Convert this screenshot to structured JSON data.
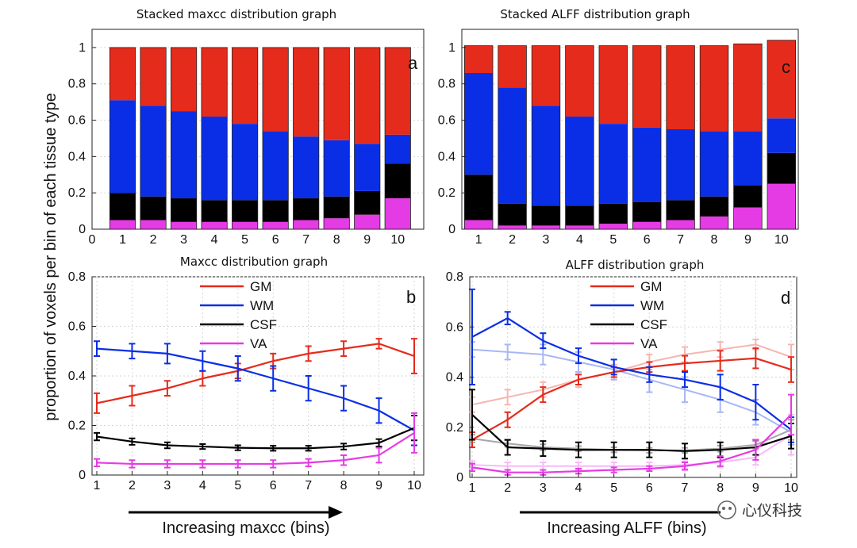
{
  "shared": {
    "ylabel": "proportion of voxels per bin of each tissue type",
    "watermark": "心仪科技"
  },
  "chart_data": [
    {
      "id": "a",
      "type": "bar",
      "stacked": true,
      "title": "Stacked maxcc distribution graph",
      "corner_label": "a",
      "x_ticks": [
        "0",
        "1",
        "2",
        "3",
        "4",
        "5",
        "6",
        "7",
        "8",
        "9",
        "10"
      ],
      "y_ticks": [
        "0",
        "0.2",
        "0.4",
        "0.6",
        "0.8",
        "1"
      ],
      "categories": [
        "1",
        "2",
        "3",
        "4",
        "5",
        "6",
        "7",
        "8",
        "9",
        "10"
      ],
      "ylim": [
        0,
        1.1
      ],
      "series": [
        {
          "key": "VA",
          "color": "#e53be5",
          "values": [
            0.05,
            0.05,
            0.04,
            0.04,
            0.04,
            0.04,
            0.05,
            0.06,
            0.08,
            0.17
          ]
        },
        {
          "key": "CSF",
          "color": "#000000",
          "values": [
            0.15,
            0.13,
            0.13,
            0.12,
            0.12,
            0.12,
            0.12,
            0.12,
            0.13,
            0.19
          ]
        },
        {
          "key": "WM",
          "color": "#0a2ee6",
          "values": [
            0.51,
            0.5,
            0.48,
            0.46,
            0.42,
            0.38,
            0.34,
            0.31,
            0.26,
            0.16
          ]
        },
        {
          "key": "GM",
          "color": "#e52b1c",
          "values": [
            0.29,
            0.32,
            0.35,
            0.38,
            0.42,
            0.46,
            0.49,
            0.51,
            0.53,
            0.48
          ]
        }
      ]
    },
    {
      "id": "c",
      "type": "bar",
      "stacked": true,
      "title": "Stacked ALFF distribution graph",
      "corner_label": "c",
      "x_ticks": [
        "1",
        "2",
        "3",
        "4",
        "5",
        "6",
        "7",
        "8",
        "9",
        "10"
      ],
      "y_ticks": [
        "0",
        "0.2",
        "0.4",
        "0.6",
        "0.8",
        "1"
      ],
      "categories": [
        "1",
        "2",
        "3",
        "4",
        "5",
        "6",
        "7",
        "8",
        "9",
        "10"
      ],
      "ylim": [
        0,
        1.1
      ],
      "series": [
        {
          "key": "VA",
          "color": "#e53be5",
          "values": [
            0.05,
            0.02,
            0.02,
            0.02,
            0.03,
            0.04,
            0.05,
            0.07,
            0.12,
            0.25
          ]
        },
        {
          "key": "CSF",
          "color": "#000000",
          "values": [
            0.25,
            0.12,
            0.11,
            0.11,
            0.11,
            0.11,
            0.11,
            0.11,
            0.12,
            0.17
          ]
        },
        {
          "key": "WM",
          "color": "#0a2ee6",
          "values": [
            0.56,
            0.64,
            0.55,
            0.49,
            0.44,
            0.41,
            0.39,
            0.36,
            0.3,
            0.19
          ]
        },
        {
          "key": "GM",
          "color": "#e52b1c",
          "values": [
            0.15,
            0.23,
            0.33,
            0.39,
            0.43,
            0.45,
            0.46,
            0.47,
            0.48,
            0.43
          ]
        }
      ]
    },
    {
      "id": "b",
      "type": "line",
      "title": "Maxcc distribution graph",
      "corner_label": "b",
      "xlabel": "Increasing maxcc (bins)",
      "x": [
        1,
        2,
        3,
        4,
        5,
        6,
        7,
        8,
        9,
        10
      ],
      "x_ticks": [
        "1",
        "2",
        "3",
        "4",
        "5",
        "6",
        "7",
        "8",
        "9",
        "10"
      ],
      "y_ticks": [
        "0",
        "0.2",
        "0.4",
        "0.6",
        "0.8"
      ],
      "ylim": [
        0,
        0.8
      ],
      "xlim": [
        1,
        10
      ],
      "legend": [
        {
          "label": "GM",
          "color": "#e52b1c"
        },
        {
          "label": "WM",
          "color": "#0a2ee6"
        },
        {
          "label": "CSF",
          "color": "#000000"
        },
        {
          "label": "VA",
          "color": "#e53be5"
        }
      ],
      "series": [
        {
          "name": "GM",
          "color": "#e52b1c",
          "values": [
            0.29,
            0.32,
            0.35,
            0.39,
            0.42,
            0.46,
            0.49,
            0.51,
            0.53,
            0.48
          ],
          "err": [
            0.04,
            0.04,
            0.03,
            0.03,
            0.03,
            0.03,
            0.03,
            0.03,
            0.02,
            0.07
          ]
        },
        {
          "name": "WM",
          "color": "#0a2ee6",
          "values": [
            0.51,
            0.5,
            0.49,
            0.46,
            0.43,
            0.39,
            0.35,
            0.31,
            0.26,
            0.18
          ],
          "err": [
            0.03,
            0.03,
            0.04,
            0.04,
            0.05,
            0.05,
            0.05,
            0.05,
            0.05,
            0.06
          ]
        },
        {
          "name": "CSF",
          "color": "#000000",
          "values": [
            0.155,
            0.135,
            0.12,
            0.115,
            0.11,
            0.108,
            0.108,
            0.115,
            0.13,
            0.19
          ],
          "err": [
            0.015,
            0.013,
            0.012,
            0.01,
            0.01,
            0.01,
            0.01,
            0.012,
            0.015,
            0.05
          ]
        },
        {
          "name": "VA",
          "color": "#e53be5",
          "values": [
            0.05,
            0.045,
            0.045,
            0.045,
            0.045,
            0.045,
            0.05,
            0.06,
            0.08,
            0.17
          ],
          "err": [
            0.015,
            0.015,
            0.015,
            0.015,
            0.015,
            0.015,
            0.015,
            0.02,
            0.03,
            0.08
          ]
        }
      ]
    },
    {
      "id": "d",
      "type": "line",
      "title": "ALFF distribution graph",
      "corner_label": "d",
      "xlabel": "Increasing ALFF (bins)",
      "x": [
        1,
        2,
        3,
        4,
        5,
        6,
        7,
        8,
        9,
        10
      ],
      "x_ticks": [
        "1",
        "2",
        "3",
        "4",
        "5",
        "6",
        "7",
        "8",
        "9",
        "10"
      ],
      "y_ticks": [
        "0",
        "0.2",
        "0.4",
        "0.6",
        "0.8"
      ],
      "ylim": [
        0,
        0.8
      ],
      "xlim": [
        1,
        10
      ],
      "legend": [
        {
          "label": "GM",
          "color": "#e52b1c"
        },
        {
          "label": "WM",
          "color": "#0a2ee6"
        },
        {
          "label": "CSF",
          "color": "#000000"
        },
        {
          "label": "VA",
          "color": "#e53be5"
        }
      ],
      "series": [
        {
          "name": "GM",
          "color": "#e52b1c",
          "values": [
            0.15,
            0.23,
            0.33,
            0.39,
            0.42,
            0.44,
            0.455,
            0.465,
            0.475,
            0.43
          ],
          "err": [
            0.03,
            0.03,
            0.03,
            0.02,
            0.02,
            0.02,
            0.03,
            0.04,
            0.04,
            0.05
          ]
        },
        {
          "name": "WM",
          "color": "#0a2ee6",
          "values": [
            0.56,
            0.635,
            0.545,
            0.485,
            0.44,
            0.41,
            0.39,
            0.36,
            0.3,
            0.19
          ],
          "err": [
            0.19,
            0.025,
            0.03,
            0.03,
            0.03,
            0.03,
            0.03,
            0.05,
            0.07,
            0.05
          ]
        },
        {
          "name": "CSF",
          "color": "#000000",
          "values": [
            0.25,
            0.12,
            0.115,
            0.11,
            0.11,
            0.11,
            0.105,
            0.11,
            0.12,
            0.165
          ],
          "err": [
            0.1,
            0.03,
            0.03,
            0.03,
            0.03,
            0.03,
            0.03,
            0.03,
            0.03,
            0.05
          ]
        },
        {
          "name": "VA",
          "color": "#e53be5",
          "values": [
            0.04,
            0.02,
            0.02,
            0.025,
            0.03,
            0.035,
            0.045,
            0.065,
            0.11,
            0.25
          ],
          "err": [
            0.015,
            0.01,
            0.01,
            0.01,
            0.01,
            0.01,
            0.015,
            0.02,
            0.04,
            0.08
          ]
        },
        {
          "name": "GM (maxcc)",
          "color": "#e52b1c",
          "faded": true,
          "values": [
            0.29,
            0.32,
            0.35,
            0.39,
            0.42,
            0.46,
            0.49,
            0.51,
            0.53,
            0.48
          ],
          "err": [
            0.03,
            0.03,
            0.03,
            0.03,
            0.03,
            0.03,
            0.03,
            0.03,
            0.02,
            0.05
          ]
        },
        {
          "name": "WM (maxcc)",
          "color": "#0a2ee6",
          "faded": true,
          "values": [
            0.51,
            0.5,
            0.49,
            0.46,
            0.43,
            0.39,
            0.35,
            0.31,
            0.26,
            0.18
          ],
          "err": [
            0.03,
            0.03,
            0.04,
            0.04,
            0.04,
            0.05,
            0.05,
            0.05,
            0.05,
            0.05
          ]
        },
        {
          "name": "CSF (maxcc)",
          "color": "#000000",
          "faded": true,
          "values": [
            0.155,
            0.135,
            0.12,
            0.115,
            0.11,
            0.108,
            0.108,
            0.115,
            0.13,
            0.19
          ],
          "err": [
            0.015,
            0.013,
            0.012,
            0.01,
            0.01,
            0.01,
            0.01,
            0.012,
            0.015,
            0.04
          ]
        },
        {
          "name": "VA (maxcc)",
          "color": "#e53be5",
          "faded": true,
          "values": [
            0.05,
            0.045,
            0.045,
            0.045,
            0.045,
            0.045,
            0.05,
            0.06,
            0.08,
            0.17
          ],
          "err": [
            0.015,
            0.015,
            0.015,
            0.015,
            0.015,
            0.015,
            0.015,
            0.02,
            0.03,
            0.08
          ]
        }
      ]
    }
  ]
}
